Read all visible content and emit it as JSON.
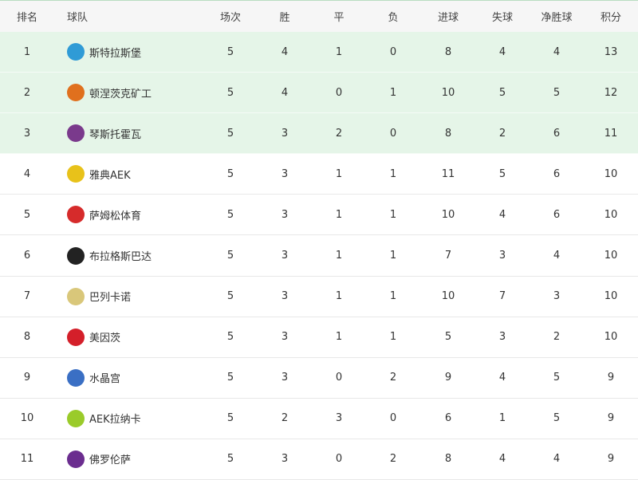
{
  "headers": {
    "rank": "排名",
    "team": "球队",
    "played": "场次",
    "won": "胜",
    "drawn": "平",
    "lost": "负",
    "gf": "进球",
    "ga": "失球",
    "gd": "净胜球",
    "pts": "积分"
  },
  "highlight_color": "#e5f5e8",
  "rows": [
    {
      "rank": "1",
      "team": "斯特拉斯堡",
      "logo": "strasbourg-logo",
      "logo_color": "#2f9bd6",
      "played": "5",
      "won": "4",
      "drawn": "1",
      "lost": "0",
      "gf": "8",
      "ga": "4",
      "gd": "4",
      "pts": "13"
    },
    {
      "rank": "2",
      "team": "顿涅茨克矿工",
      "logo": "shakhtar-logo",
      "logo_color": "#e0701e",
      "played": "5",
      "won": "4",
      "drawn": "0",
      "lost": "1",
      "gf": "10",
      "ga": "5",
      "gd": "5",
      "pts": "12"
    },
    {
      "rank": "3",
      "team": "琴斯托霍瓦",
      "logo": "rakow-logo",
      "logo_color": "#7a3a8c",
      "played": "5",
      "won": "3",
      "drawn": "2",
      "lost": "0",
      "gf": "8",
      "ga": "2",
      "gd": "6",
      "pts": "11"
    },
    {
      "rank": "4",
      "team": "雅典AEK",
      "logo": "aek-athens-logo",
      "logo_color": "#e8c21a",
      "played": "5",
      "won": "3",
      "drawn": "1",
      "lost": "1",
      "gf": "11",
      "ga": "5",
      "gd": "6",
      "pts": "10"
    },
    {
      "rank": "5",
      "team": "萨姆松体育",
      "logo": "samsunspor-logo",
      "logo_color": "#d62b2b",
      "played": "5",
      "won": "3",
      "drawn": "1",
      "lost": "1",
      "gf": "10",
      "ga": "4",
      "gd": "6",
      "pts": "10"
    },
    {
      "rank": "6",
      "team": "布拉格斯巴达",
      "logo": "sparta-prague-logo",
      "logo_color": "#222222",
      "played": "5",
      "won": "3",
      "drawn": "1",
      "lost": "1",
      "gf": "7",
      "ga": "3",
      "gd": "4",
      "pts": "10"
    },
    {
      "rank": "7",
      "team": "巴列卡诺",
      "logo": "rayo-vallecano-logo",
      "logo_color": "#d9c77a",
      "played": "5",
      "won": "3",
      "drawn": "1",
      "lost": "1",
      "gf": "10",
      "ga": "7",
      "gd": "3",
      "pts": "10"
    },
    {
      "rank": "8",
      "team": "美因茨",
      "logo": "mainz-logo",
      "logo_color": "#d41f2a",
      "played": "5",
      "won": "3",
      "drawn": "1",
      "lost": "1",
      "gf": "5",
      "ga": "3",
      "gd": "2",
      "pts": "10"
    },
    {
      "rank": "9",
      "team": "水晶宫",
      "logo": "crystal-palace-logo",
      "logo_color": "#3a6fc4",
      "played": "5",
      "won": "3",
      "drawn": "0",
      "lost": "2",
      "gf": "9",
      "ga": "4",
      "gd": "5",
      "pts": "9"
    },
    {
      "rank": "10",
      "team": "AEK拉纳卡",
      "logo": "aek-larnaca-logo",
      "logo_color": "#9acb2a",
      "played": "5",
      "won": "2",
      "drawn": "3",
      "lost": "0",
      "gf": "6",
      "ga": "1",
      "gd": "5",
      "pts": "9"
    },
    {
      "rank": "11",
      "team": "佛罗伦萨",
      "logo": "fiorentina-logo",
      "logo_color": "#6b2d8f",
      "played": "5",
      "won": "3",
      "drawn": "0",
      "lost": "2",
      "gf": "8",
      "ga": "4",
      "gd": "4",
      "pts": "9"
    }
  ]
}
